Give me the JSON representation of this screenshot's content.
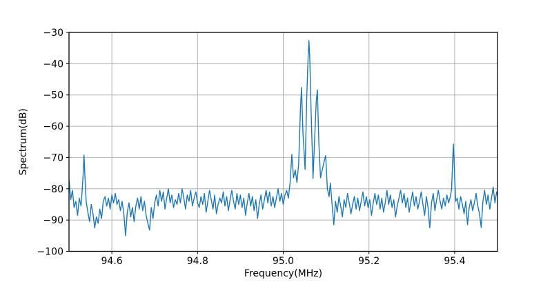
{
  "chart_data": {
    "type": "line",
    "title": "",
    "xlabel": "Frequency(MHz)",
    "ylabel": "Spectrum(dB)",
    "xlim": [
      94.5,
      95.5
    ],
    "ylim": [
      -100,
      -30
    ],
    "xticks": [
      94.6,
      94.8,
      95.0,
      95.2,
      95.4
    ],
    "xtick_labels": [
      "94.6",
      "94.8",
      "95.0",
      "95.2",
      "95.4"
    ],
    "yticks": [
      -30,
      -40,
      -50,
      -60,
      -70,
      -80,
      -90,
      -100
    ],
    "ytick_labels": [
      "−30",
      "−40",
      "−50",
      "−60",
      "−70",
      "−80",
      "−90",
      "−100"
    ],
    "grid": true,
    "legend": null,
    "line_color": "#1f77b4",
    "grid_color": "#b0b0b0",
    "spine_color": "#000000",
    "notable_peaks": [
      {
        "x": 94.535,
        "y": -69.2
      },
      {
        "x": 95.0426,
        "y": -47.6
      },
      {
        "x": 95.06,
        "y": -32.6
      },
      {
        "x": 95.0797,
        "y": -48.4
      },
      {
        "x": 95.397,
        "y": -65.7
      }
    ],
    "series": [
      {
        "name": "spectrum",
        "x": [
          94.5,
          94.504,
          94.508,
          94.512,
          94.516,
          94.52,
          94.524,
          94.528,
          94.5305,
          94.533,
          94.535,
          94.5375,
          94.54,
          94.544,
          94.548,
          94.552,
          94.556,
          94.56,
          94.564,
          94.568,
          94.572,
          94.576,
          94.58,
          94.584,
          94.588,
          94.592,
          94.596,
          94.6,
          94.604,
          94.608,
          94.612,
          94.616,
          94.62,
          94.624,
          94.628,
          94.632,
          94.636,
          94.64,
          94.644,
          94.648,
          94.652,
          94.656,
          94.66,
          94.664,
          94.668,
          94.672,
          94.676,
          94.68,
          94.684,
          94.688,
          94.692,
          94.696,
          94.7,
          94.704,
          94.708,
          94.712,
          94.716,
          94.72,
          94.724,
          94.728,
          94.732,
          94.736,
          94.74,
          94.744,
          94.748,
          94.752,
          94.756,
          94.76,
          94.764,
          94.768,
          94.772,
          94.776,
          94.78,
          94.784,
          94.788,
          94.792,
          94.796,
          94.8,
          94.804,
          94.808,
          94.812,
          94.816,
          94.82,
          94.824,
          94.828,
          94.832,
          94.836,
          94.84,
          94.844,
          94.848,
          94.852,
          94.856,
          94.86,
          94.864,
          94.868,
          94.872,
          94.876,
          94.88,
          94.884,
          94.888,
          94.892,
          94.896,
          94.9,
          94.904,
          94.908,
          94.912,
          94.916,
          94.92,
          94.924,
          94.928,
          94.932,
          94.936,
          94.94,
          94.944,
          94.948,
          94.952,
          94.956,
          94.96,
          94.964,
          94.968,
          94.972,
          94.976,
          94.98,
          94.984,
          94.988,
          94.992,
          94.996,
          95.0,
          95.004,
          95.008,
          95.012,
          95.016,
          95.02,
          95.024,
          95.028,
          95.032,
          95.036,
          95.04,
          95.0426,
          95.046,
          95.051,
          95.055,
          95.058,
          95.06,
          95.062,
          95.065,
          95.0695,
          95.073,
          95.077,
          95.0797,
          95.083,
          95.087,
          95.091,
          95.095,
          95.099,
          95.103,
          95.107,
          95.11,
          95.114,
          95.118,
          95.122,
          95.126,
          95.13,
          95.134,
          95.138,
          95.142,
          95.146,
          95.15,
          95.154,
          95.158,
          95.162,
          95.166,
          95.17,
          95.174,
          95.178,
          95.182,
          95.186,
          95.19,
          95.194,
          95.198,
          95.202,
          95.206,
          95.21,
          95.214,
          95.218,
          95.222,
          95.226,
          95.23,
          95.234,
          95.238,
          95.242,
          95.246,
          95.25,
          95.254,
          95.258,
          95.262,
          95.266,
          95.27,
          95.274,
          95.278,
          95.282,
          95.286,
          95.29,
          95.294,
          95.298,
          95.302,
          95.306,
          95.31,
          95.314,
          95.318,
          95.322,
          95.326,
          95.33,
          95.334,
          95.338,
          95.342,
          95.346,
          95.35,
          95.354,
          95.358,
          95.362,
          95.366,
          95.37,
          95.374,
          95.378,
          95.382,
          95.386,
          95.39,
          95.393,
          95.395,
          95.397,
          95.4,
          95.4025,
          95.406,
          95.41,
          95.414,
          95.418,
          95.422,
          95.426,
          95.43,
          95.434,
          95.438,
          95.442,
          95.446,
          95.45,
          95.454,
          95.458,
          95.462,
          95.466,
          95.47,
          95.474,
          95.478,
          95.482,
          95.486,
          95.49,
          95.494,
          95.498,
          95.5
        ],
        "y": [
          -77,
          -83.5,
          -80.5,
          -86,
          -84,
          -88.5,
          -83,
          -85.5,
          -81,
          -75.5,
          -69.2,
          -77,
          -84,
          -87.5,
          -90.5,
          -85,
          -88,
          -92.5,
          -89,
          -91,
          -86.5,
          -89.5,
          -84,
          -82.5,
          -85.5,
          -83,
          -86.5,
          -82,
          -84.5,
          -81.5,
          -85,
          -83.5,
          -87,
          -84,
          -88,
          -95,
          -87.5,
          -84.5,
          -89,
          -86,
          -90.5,
          -85.5,
          -83,
          -86.5,
          -82.5,
          -87,
          -84,
          -88.5,
          -91,
          -93.2,
          -86,
          -89.5,
          -84.5,
          -82,
          -85.5,
          -80.5,
          -84,
          -81,
          -86.5,
          -83,
          -80,
          -84.5,
          -82,
          -86,
          -83.5,
          -85,
          -81.5,
          -84.5,
          -80,
          -83,
          -86.5,
          -82,
          -84,
          -80.5,
          -85.5,
          -83,
          -81,
          -84.5,
          -86,
          -82.5,
          -85,
          -81.5,
          -87.5,
          -84,
          -80.5,
          -83.5,
          -86.5,
          -82,
          -88,
          -85,
          -83,
          -84.5,
          -81,
          -85.5,
          -82.5,
          -87,
          -83.5,
          -80.5,
          -84,
          -86.5,
          -81.5,
          -85,
          -82,
          -86,
          -83,
          -88.5,
          -84.5,
          -81.5,
          -85.5,
          -82.5,
          -87,
          -83.5,
          -89.5,
          -85,
          -82,
          -86.5,
          -83.5,
          -80.5,
          -84.5,
          -81,
          -85.5,
          -82.5,
          -86,
          -83,
          -80,
          -84,
          -81.5,
          -85,
          -82,
          -80.5,
          -83,
          -78,
          -69,
          -76.5,
          -74,
          -78,
          -72,
          -55,
          -47.6,
          -62,
          -73.8,
          -50,
          -38,
          -32.6,
          -38.5,
          -55,
          -76.7,
          -65,
          -52,
          -48.4,
          -65,
          -76.5,
          -74,
          -71.5,
          -69.4,
          -80,
          -82.5,
          -78.2,
          -85,
          -91.5,
          -84,
          -87.5,
          -82.5,
          -85.5,
          -89,
          -83.5,
          -86,
          -81.5,
          -84.5,
          -88,
          -85,
          -82.5,
          -86.5,
          -83,
          -87,
          -84,
          -81,
          -85.5,
          -82.5,
          -86,
          -83.5,
          -88.5,
          -84.5,
          -81.5,
          -85,
          -82,
          -86.5,
          -83,
          -87.5,
          -84.5,
          -80.5,
          -85,
          -82,
          -86,
          -83.5,
          -89,
          -85.5,
          -83,
          -80.5,
          -84.5,
          -81.5,
          -86,
          -83,
          -87.5,
          -84,
          -81,
          -85.5,
          -82.5,
          -86.5,
          -84,
          -81,
          -85,
          -88.5,
          -82.5,
          -86,
          -92.5,
          -84.5,
          -81.5,
          -87,
          -83.5,
          -80.5,
          -84,
          -86.5,
          -83,
          -85.5,
          -82,
          -84.5,
          -82.5,
          -80,
          -72,
          -65.7,
          -76,
          -84,
          -83,
          -86.5,
          -82.5,
          -85,
          -88,
          -84,
          -91.5,
          -86,
          -83.5,
          -87,
          -84.5,
          -81.5,
          -85.5,
          -88,
          -92.4,
          -84,
          -80.5,
          -85,
          -82,
          -86.5,
          -83,
          -79.5,
          -84.5,
          -81,
          -82
        ]
      }
    ]
  }
}
